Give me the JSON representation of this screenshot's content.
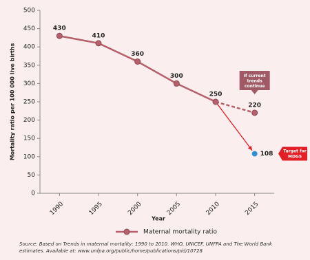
{
  "chart_data": {
    "type": "line",
    "y_label": "Mortality ratio per 100 000 live births",
    "x_label": "Year",
    "x": [
      1990,
      1995,
      2000,
      2005,
      2010,
      2015
    ],
    "xlim": [
      1987.5,
      2017.5
    ],
    "xticks": [
      1990,
      1995,
      2000,
      2005,
      2010,
      2015
    ],
    "ylim": [
      0,
      500
    ],
    "yticks": [
      0,
      50,
      100,
      150,
      200,
      250,
      300,
      350,
      400,
      450,
      500
    ],
    "series": [
      {
        "name": "Maternal mortality ratio",
        "color": "#b5606c",
        "values": [
          430,
          410,
          360,
          300,
          250,
          null
        ]
      }
    ],
    "projection": {
      "x": [
        2010,
        2015
      ],
      "values": [
        250,
        220
      ],
      "color": "#b5606c",
      "label": "If current trends continue"
    },
    "target": {
      "x": 2015,
      "value": 108,
      "color": "#2f8fd0",
      "arrow_color": "#e31e24",
      "label": "Target for MDG5"
    },
    "source": "Source: Based on Trends in maternal mortality: 1990 to 2010. WHO, UNICEF, UNFPA and The World Bank estimates. Available at:  www.unfpa.org/public/home/publications/pid/10728",
    "legend": "bottom"
  }
}
